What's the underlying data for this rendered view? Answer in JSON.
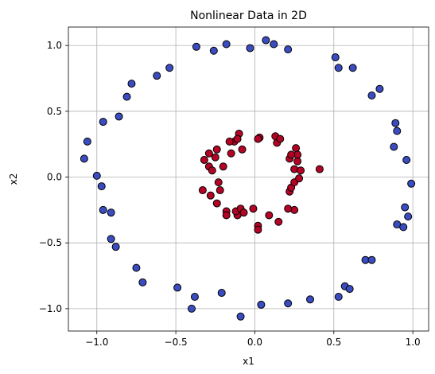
{
  "chart_data": {
    "type": "scatter",
    "title": "Nonlinear Data in 2D",
    "xlabel": "x1",
    "ylabel": "x2",
    "xlim": [
      -1.18,
      1.1
    ],
    "ylim": [
      -1.17,
      1.14
    ],
    "xticks": [
      -1.0,
      -0.5,
      0.0,
      0.5,
      1.0
    ],
    "yticks": [
      -1.0,
      -0.5,
      0.0,
      0.5,
      1.0
    ],
    "xtick_labels": [
      "−1.0",
      "−0.5",
      "0.0",
      "0.5",
      "1.0"
    ],
    "ytick_labels": [
      "−1.0",
      "−0.5",
      "0.0",
      "0.5",
      "1.0"
    ],
    "grid": true,
    "series": [
      {
        "color": "#3b4cc0",
        "points": [
          [
            -0.37,
            0.99
          ],
          [
            -0.26,
            0.96
          ],
          [
            -0.18,
            1.01
          ],
          [
            -0.03,
            0.98
          ],
          [
            0.07,
            1.04
          ],
          [
            0.12,
            1.01
          ],
          [
            0.21,
            0.97
          ],
          [
            -0.54,
            0.83
          ],
          [
            -0.62,
            0.77
          ],
          [
            -0.78,
            0.71
          ],
          [
            -0.81,
            0.61
          ],
          [
            -0.86,
            0.46
          ],
          [
            -0.96,
            0.42
          ],
          [
            -1.06,
            0.27
          ],
          [
            -1.08,
            0.14
          ],
          [
            -1.0,
            0.01
          ],
          [
            -0.97,
            -0.07
          ],
          [
            -0.96,
            -0.25
          ],
          [
            -0.91,
            -0.27
          ],
          [
            -0.91,
            -0.47
          ],
          [
            -0.88,
            -0.53
          ],
          [
            -0.75,
            -0.69
          ],
          [
            -0.71,
            -0.8
          ],
          [
            -0.49,
            -0.84
          ],
          [
            -0.38,
            -0.91
          ],
          [
            -0.4,
            -1.0
          ],
          [
            -0.21,
            -0.88
          ],
          [
            -0.09,
            -1.06
          ],
          [
            0.04,
            -0.97
          ],
          [
            0.21,
            -0.96
          ],
          [
            0.35,
            -0.93
          ],
          [
            0.53,
            -0.91
          ],
          [
            0.57,
            -0.83
          ],
          [
            0.6,
            -0.85
          ],
          [
            0.7,
            -0.63
          ],
          [
            0.74,
            -0.63
          ],
          [
            0.9,
            -0.36
          ],
          [
            0.94,
            -0.38
          ],
          [
            0.97,
            -0.3
          ],
          [
            0.95,
            -0.23
          ],
          [
            0.99,
            -0.05
          ],
          [
            0.96,
            0.13
          ],
          [
            0.9,
            0.35
          ],
          [
            0.89,
            0.41
          ],
          [
            0.88,
            0.23
          ],
          [
            0.79,
            0.67
          ],
          [
            0.74,
            0.62
          ],
          [
            0.62,
            0.83
          ],
          [
            0.51,
            0.91
          ],
          [
            0.53,
            0.83
          ]
        ]
      },
      {
        "color": "#b40426",
        "points": [
          [
            -0.1,
            0.33
          ],
          [
            -0.13,
            0.27
          ],
          [
            -0.11,
            0.29
          ],
          [
            -0.16,
            0.27
          ],
          [
            -0.15,
            0.18
          ],
          [
            -0.08,
            0.21
          ],
          [
            -0.29,
            0.18
          ],
          [
            -0.24,
            0.21
          ],
          [
            -0.32,
            0.13
          ],
          [
            -0.25,
            0.15
          ],
          [
            -0.29,
            0.08
          ],
          [
            -0.27,
            0.05
          ],
          [
            -0.2,
            0.08
          ],
          [
            -0.23,
            -0.04
          ],
          [
            -0.33,
            -0.1
          ],
          [
            -0.28,
            -0.14
          ],
          [
            -0.22,
            -0.1
          ],
          [
            -0.24,
            -0.2
          ],
          [
            -0.18,
            -0.26
          ],
          [
            -0.18,
            -0.29
          ],
          [
            -0.11,
            -0.29
          ],
          [
            -0.12,
            -0.26
          ],
          [
            -0.09,
            -0.24
          ],
          [
            -0.07,
            -0.27
          ],
          [
            -0.01,
            -0.24
          ],
          [
            0.02,
            -0.37
          ],
          [
            0.02,
            -0.4
          ],
          [
            0.09,
            -0.29
          ],
          [
            0.15,
            -0.34
          ],
          [
            0.25,
            -0.25
          ],
          [
            0.21,
            -0.24
          ],
          [
            0.22,
            -0.11
          ],
          [
            0.23,
            -0.08
          ],
          [
            0.25,
            -0.04
          ],
          [
            0.25,
            0.06
          ],
          [
            0.28,
            -0.01
          ],
          [
            0.29,
            0.05
          ],
          [
            0.27,
            0.12
          ],
          [
            0.26,
            0.22
          ],
          [
            0.27,
            0.17
          ],
          [
            0.22,
            0.14
          ],
          [
            0.23,
            0.17
          ],
          [
            0.14,
            0.26
          ],
          [
            0.13,
            0.31
          ],
          [
            0.16,
            0.29
          ],
          [
            0.03,
            0.3
          ],
          [
            0.02,
            0.29
          ],
          [
            0.41,
            0.06
          ]
        ]
      }
    ]
  }
}
